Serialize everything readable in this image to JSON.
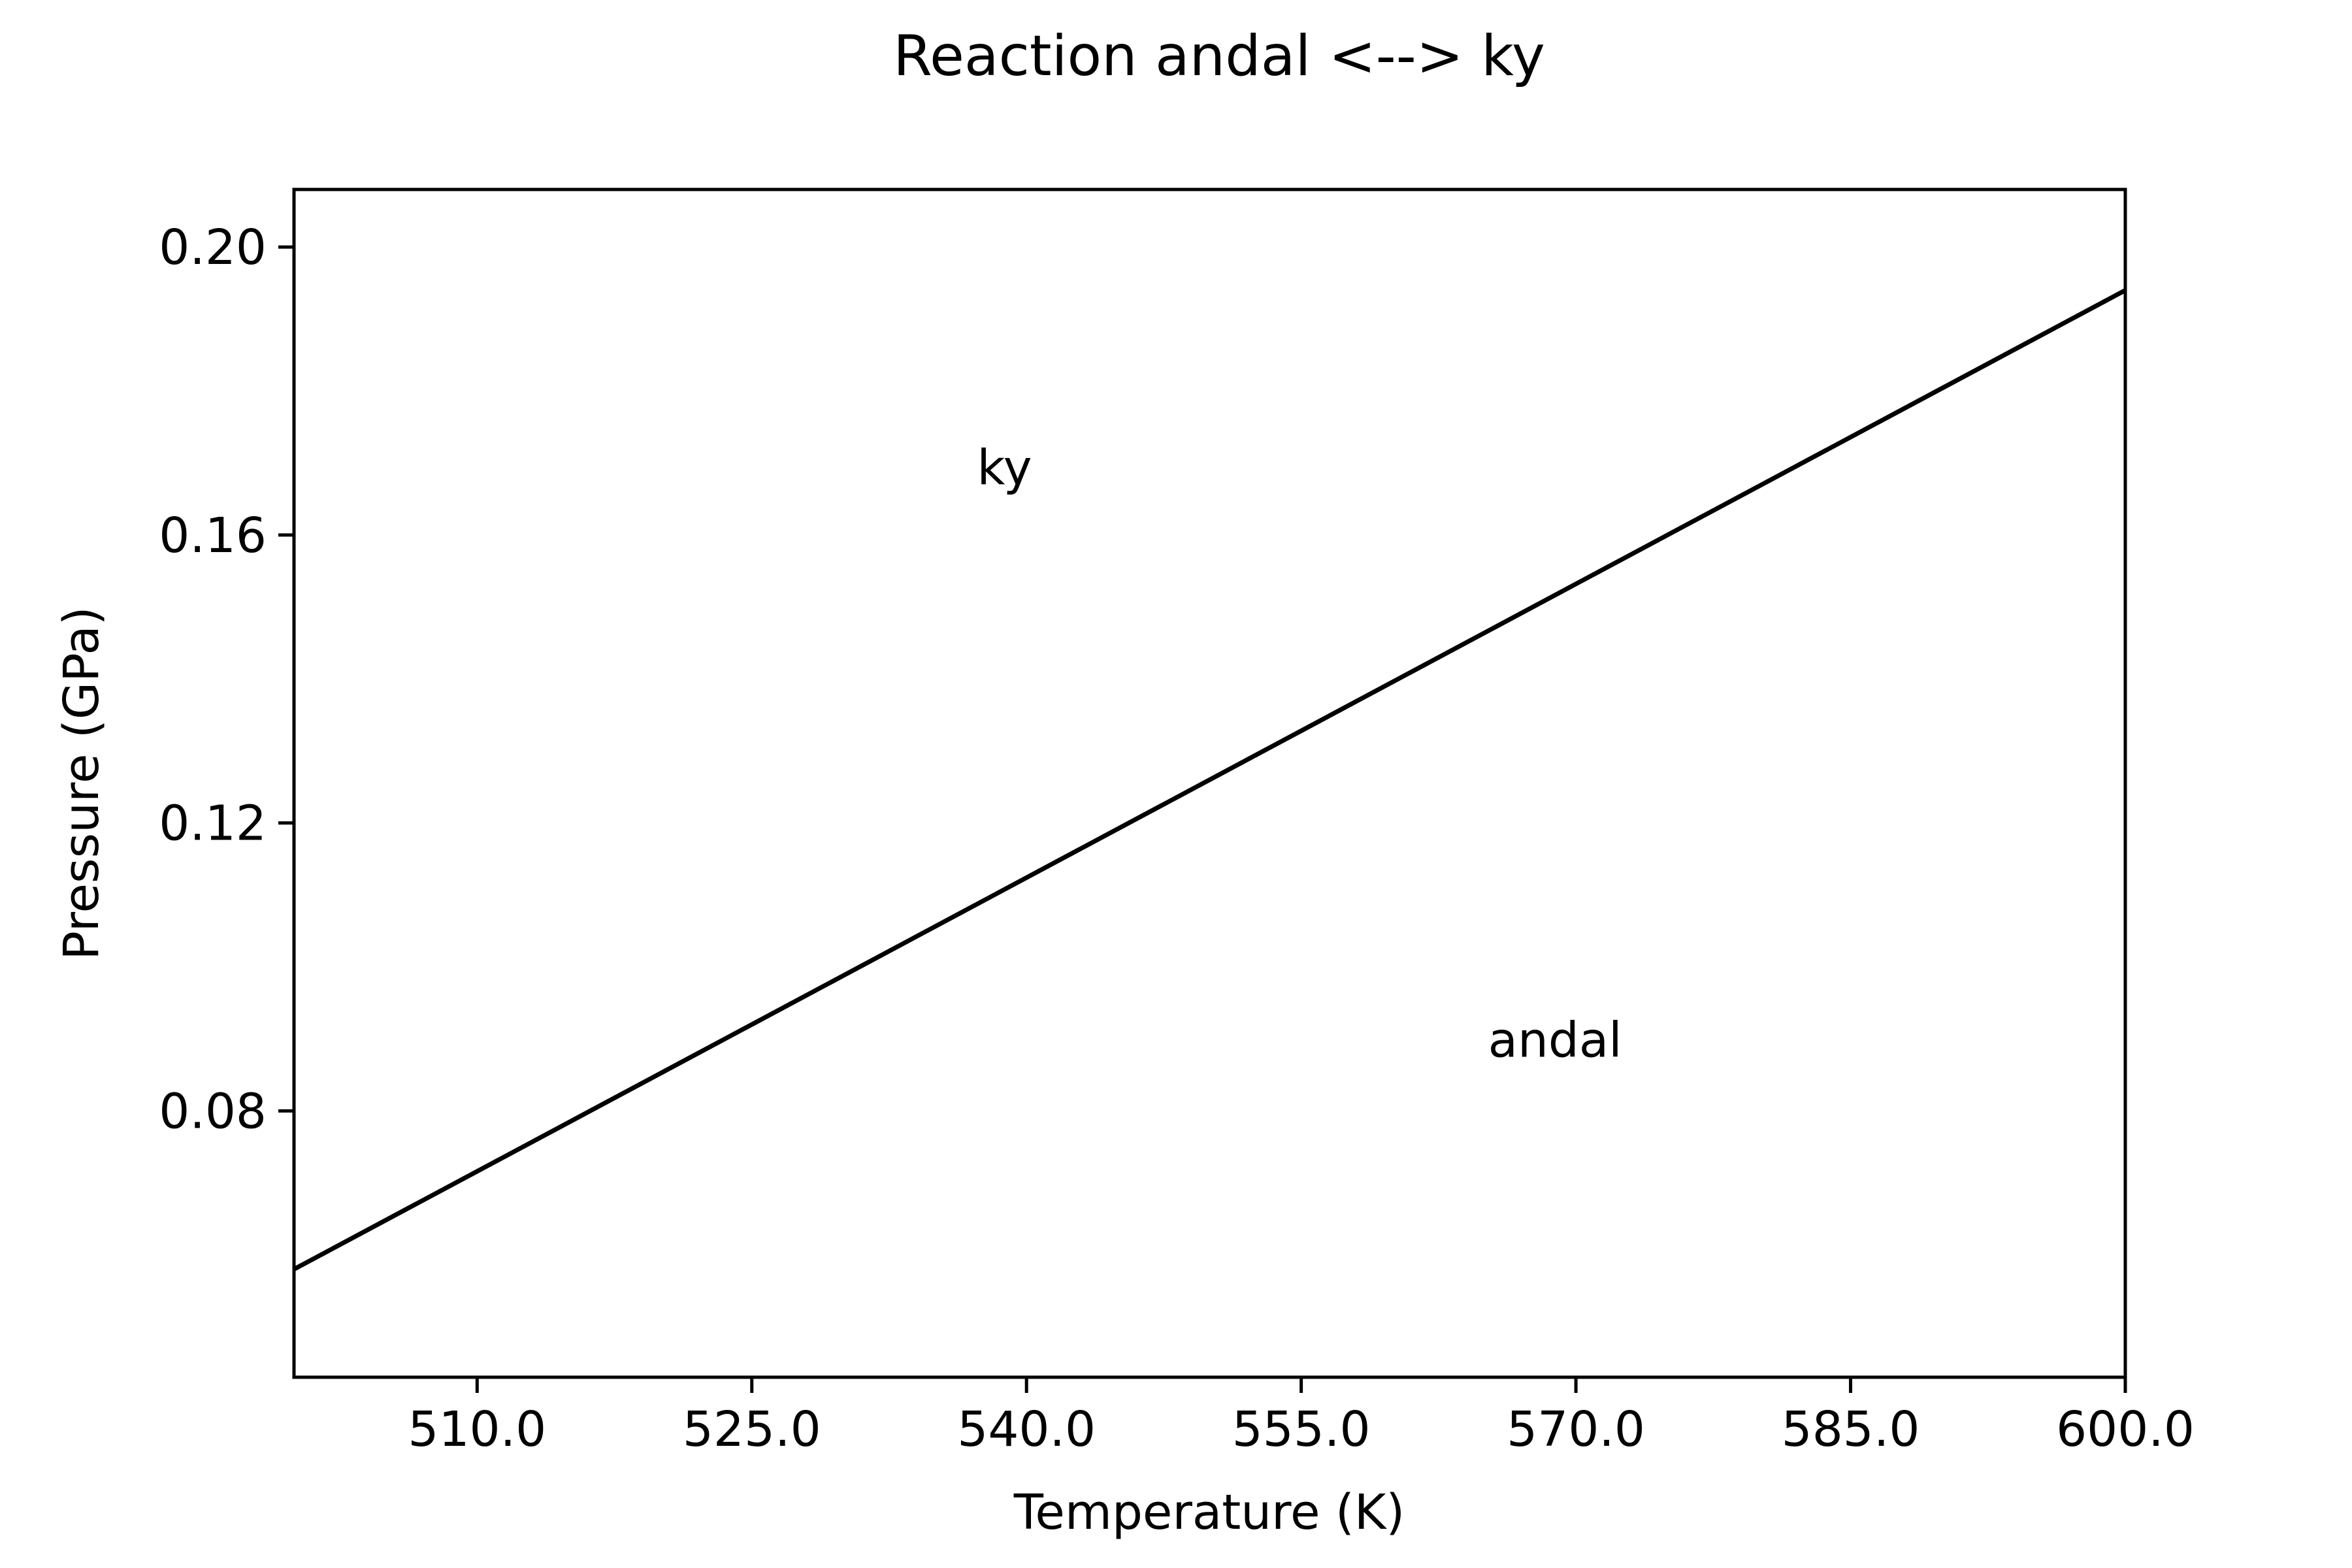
{
  "chart_data": {
    "type": "line",
    "title": "Reaction andal <--> ky",
    "xlabel": "Temperature (K)",
    "ylabel": "Pressure (GPa)",
    "xlim": [
      500,
      600
    ],
    "ylim": [
      0.043,
      0.208
    ],
    "x_ticks": [
      510,
      525,
      540,
      555,
      570,
      585,
      600
    ],
    "x_tick_labels": [
      "510.0",
      "525.0",
      "540.0",
      "555.0",
      "570.0",
      "585.0",
      "600.0"
    ],
    "y_ticks": [
      0.08,
      0.12,
      0.16,
      0.2
    ],
    "y_tick_labels": [
      "0.08",
      "0.12",
      "0.16",
      "0.20"
    ],
    "grid": false,
    "series": [
      {
        "color": "#000000",
        "x": [
          500,
          600
        ],
        "y": [
          0.058,
          0.194
        ]
      }
    ],
    "annotations": [
      {
        "text": "ky",
        "x": 537.3,
        "y": 0.167
      },
      {
        "text": "andal",
        "x": 565.2,
        "y": 0.0875
      }
    ]
  }
}
